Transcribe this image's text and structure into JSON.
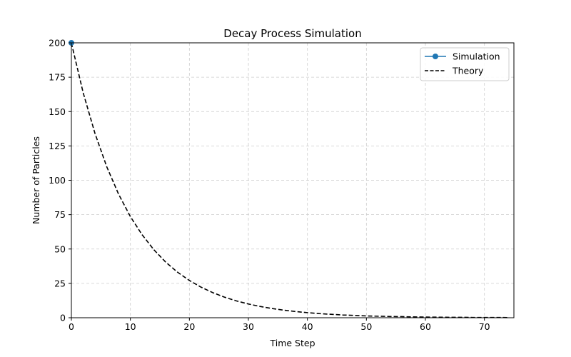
{
  "chart_data": {
    "type": "line",
    "title": "Decay Process Simulation",
    "xlabel": "Time Step",
    "ylabel": "Number of Particles",
    "xlim": [
      0,
      75
    ],
    "ylim": [
      0,
      200
    ],
    "xticks": [
      0,
      10,
      20,
      30,
      40,
      50,
      60,
      70
    ],
    "yticks": [
      0,
      25,
      50,
      75,
      100,
      125,
      150,
      175,
      200
    ],
    "grid": true,
    "legend_position": "top-right",
    "series": [
      {
        "name": "Simulation",
        "style": "line-marker",
        "color": "#1f77b4",
        "x": [
          0
        ],
        "y": [
          200
        ]
      },
      {
        "name": "Theory",
        "style": "dashed",
        "color": "#000000",
        "x": [
          0,
          2,
          4,
          6,
          8,
          10,
          12,
          14,
          16,
          18,
          20,
          22,
          24,
          26,
          28,
          30,
          32,
          34,
          36,
          38,
          40,
          42,
          44,
          46,
          48,
          50,
          52,
          54,
          56,
          58,
          60,
          62,
          64,
          66,
          68,
          70,
          72,
          74
        ],
        "y": [
          200.0,
          163.7,
          134.1,
          109.8,
          89.9,
          73.6,
          60.3,
          49.4,
          40.4,
          33.1,
          27.1,
          22.2,
          18.2,
          14.9,
          12.2,
          10.0,
          8.2,
          6.7,
          5.5,
          4.5,
          3.7,
          3.0,
          2.5,
          2.0,
          1.7,
          1.3,
          1.1,
          0.9,
          0.8,
          0.6,
          0.5,
          0.4,
          0.3,
          0.3,
          0.2,
          0.2,
          0.2,
          0.1
        ]
      }
    ]
  }
}
